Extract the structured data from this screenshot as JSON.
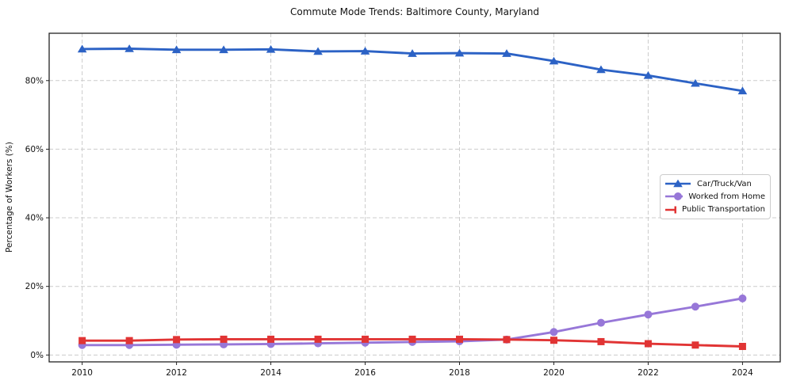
{
  "figure": {
    "background_color": "#ffffff",
    "grid_color": "#cccccc",
    "spine_color": "#222222",
    "text_color": "#111111"
  },
  "chart_data": {
    "type": "line",
    "title": "Commute Mode Trends: Baltimore County, Maryland",
    "xlabel": "",
    "ylabel": "Percentage of Workers (%)",
    "x": [
      2010,
      2011,
      2012,
      2013,
      2014,
      2015,
      2016,
      2017,
      2018,
      2019,
      2020,
      2021,
      2022,
      2023,
      2024
    ],
    "xticks": [
      2010,
      2012,
      2014,
      2016,
      2018,
      2020,
      2022,
      2024
    ],
    "xtick_labels": [
      "2010",
      "2012",
      "2014",
      "2016",
      "2018",
      "2020",
      "2022",
      "2024"
    ],
    "yticks": [
      0,
      20,
      40,
      60,
      80
    ],
    "ytick_labels": [
      "0%",
      "20%",
      "40%",
      "60%",
      "80%"
    ],
    "xlim": [
      2009.3,
      2024.8
    ],
    "ylim": [
      -2,
      93.8
    ],
    "grid": true,
    "grid_style": "dashed",
    "legend_position": "center-right",
    "series": [
      {
        "name": "Car/Truck/Van",
        "color": "#2c62c5",
        "marker": "triangle",
        "values": [
          89.2,
          89.3,
          89.0,
          89.0,
          89.1,
          88.5,
          88.6,
          87.9,
          88.0,
          87.9,
          85.7,
          83.2,
          81.5,
          79.2,
          77.0
        ]
      },
      {
        "name": "Worked from Home",
        "color": "#9777d8",
        "marker": "circle",
        "values": [
          2.9,
          2.9,
          3.0,
          3.1,
          3.2,
          3.4,
          3.6,
          3.8,
          4.0,
          4.5,
          6.7,
          9.4,
          11.8,
          14.1,
          16.5
        ]
      },
      {
        "name": "Public Transportation",
        "color": "#e13434",
        "marker": "square",
        "values": [
          4.2,
          4.2,
          4.5,
          4.6,
          4.6,
          4.6,
          4.6,
          4.6,
          4.6,
          4.5,
          4.3,
          3.9,
          3.3,
          2.9,
          2.5
        ]
      }
    ]
  }
}
